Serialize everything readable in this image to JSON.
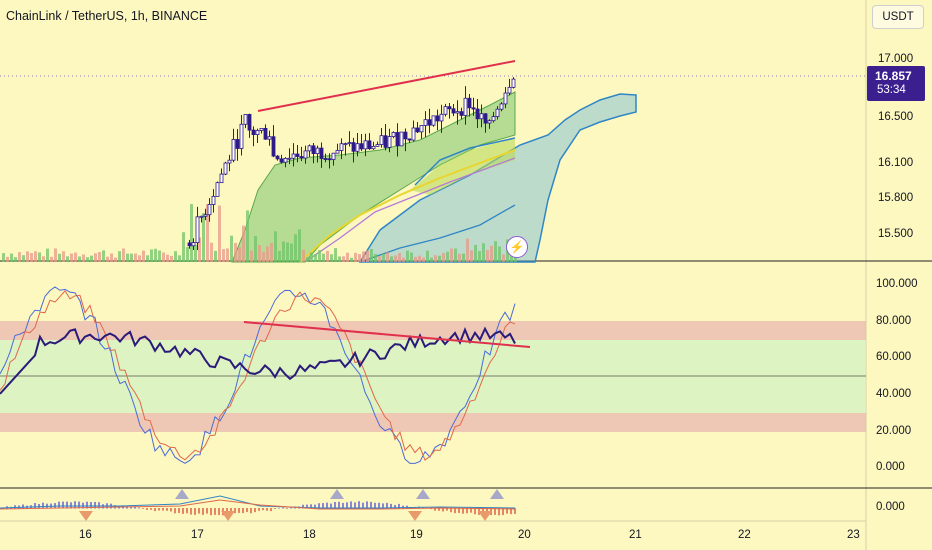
{
  "header": {
    "symbol_title": "ChainLink / TetherUS, 1h, BINANCE",
    "currency_button": "USDT"
  },
  "price_axis": {
    "ticks": [
      "17.000",
      "16.500",
      "16.100",
      "15.800",
      "15.500"
    ],
    "current_price": "16.857",
    "countdown": "53:34"
  },
  "oscillator_axis": {
    "ticks": [
      "100.000",
      "80.000",
      "60.000",
      "40.000",
      "20.000",
      "0.000"
    ]
  },
  "macd_axis": {
    "ticks": [
      "0.000"
    ]
  },
  "time_axis": {
    "ticks": [
      "16",
      "17",
      "18",
      "19",
      "20",
      "21",
      "22",
      "23"
    ]
  },
  "colors": {
    "background": "#fdf7c0",
    "candle": "#2e1b86",
    "trendline": "#e0304d",
    "cloud_blue": "#6fb8d8",
    "cloud_green": "#7cc46e",
    "overbought_zone": "#e8b4b0",
    "neutral_zone": "#d4f1c0",
    "rsi_line": "#2a1a7a",
    "stoch_k": "#4a6bd8",
    "stoch_d": "#e0684a",
    "price_tag": "#3b1f8f"
  },
  "icons": {
    "flash": "lightning-icon"
  }
}
